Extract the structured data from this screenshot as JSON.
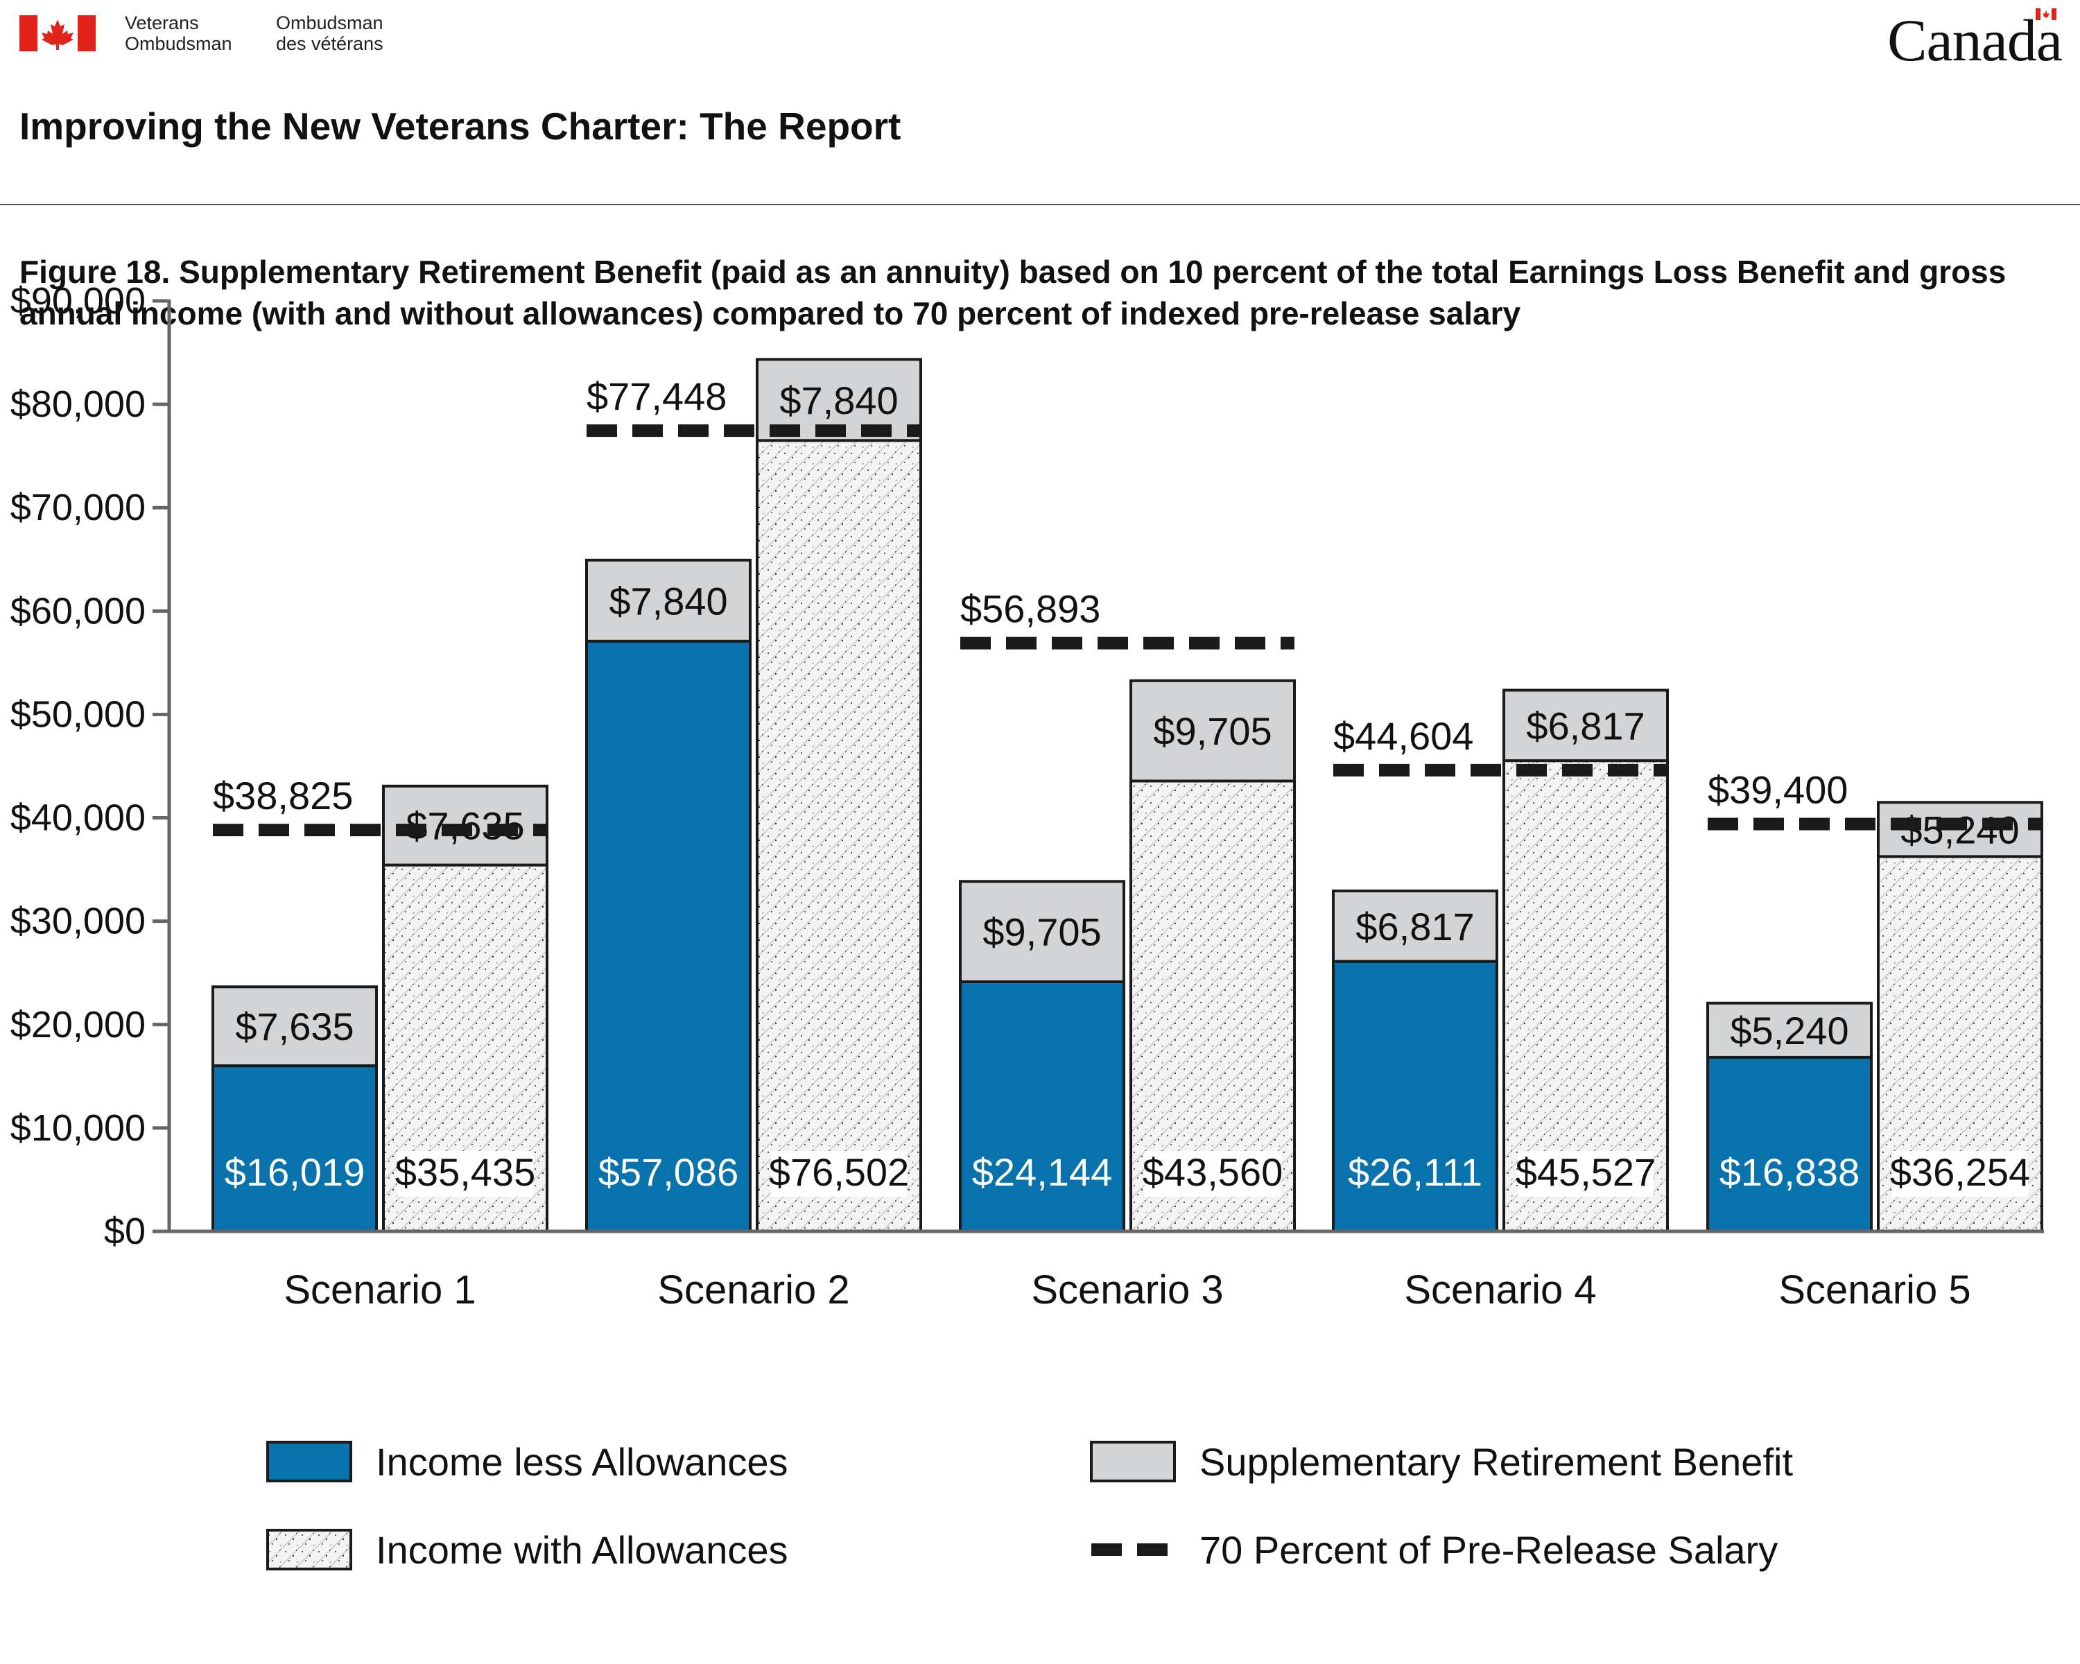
{
  "header": {
    "org_en_line1": "Veterans",
    "org_en_line2": "Ombudsman",
    "org_fr_line1": "Ombudsman",
    "org_fr_line2": "des vétérans",
    "wordmark": "Canada",
    "report_title": "Improving the New Veterans Charter: The Report",
    "figure_title": "Figure 18. Supplementary Retirement Benefit (paid as an annuity) based on 10 percent of the total Earnings Loss Benefit and gross annual income (with and without allowances) compared to 70 percent of indexed pre-release salary"
  },
  "colors": {
    "income_less": "#0872ac",
    "srb": "#d3d4d6",
    "with_allowances_fill": "#f2f2f2",
    "target_line": "#1a1a1a",
    "flag_red": "#e2231a"
  },
  "chart_data": {
    "type": "bar",
    "subtype": "grouped-stacked",
    "ylim": [
      0,
      90000
    ],
    "yticks": [
      "$0",
      "$10,000",
      "$20,000",
      "$30,000",
      "$40,000",
      "$50,000",
      "$60,000",
      "$70,000",
      "$80,000",
      "$90,000"
    ],
    "categories": [
      "Scenario 1",
      "Scenario 2",
      "Scenario 3",
      "Scenario 4",
      "Scenario 5"
    ],
    "series": [
      {
        "name": "Income less Allowances",
        "values": [
          16019,
          57086,
          24144,
          26111,
          16838
        ],
        "labels": [
          "$16,019",
          "$57,086",
          "$24,144",
          "$26,111",
          "$16,838"
        ]
      },
      {
        "name": "Income with Allowances",
        "values": [
          35435,
          76502,
          43560,
          45527,
          36254
        ],
        "labels": [
          "$35,435",
          "$76,502",
          "$43,560",
          "$45,527",
          "$36,254"
        ]
      },
      {
        "name": "Supplementary Retirement Benefit",
        "values": [
          7635,
          7840,
          9705,
          6817,
          5240
        ],
        "labels": [
          "$7,635",
          "$7,840",
          "$9,705",
          "$6,817",
          "$5,240"
        ]
      },
      {
        "name": "70 Percent of Pre-Release Salary",
        "values": [
          38825,
          77448,
          56893,
          44604,
          39400
        ],
        "labels": [
          "$38,825",
          "$77,448",
          "$56,893",
          "$44,604",
          "$39,400"
        ]
      }
    ],
    "legend": [
      "Income less Allowances",
      "Supplementary Retirement Benefit",
      "Income with Allowances",
      "70 Percent of Pre-Release Salary"
    ],
    "legend_position": "bottom"
  }
}
